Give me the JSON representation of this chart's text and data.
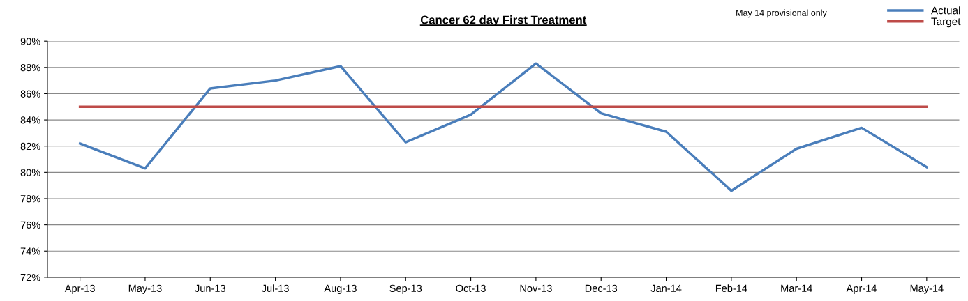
{
  "chart_data": {
    "type": "line",
    "title": "Cancer 62 day First Treatment",
    "categories": [
      "Apr-13",
      "May-13",
      "Jun-13",
      "Jul-13",
      "Aug-13",
      "Sep-13",
      "Oct-13",
      "Nov-13",
      "Dec-13",
      "Jan-14",
      "Feb-14",
      "Mar-14",
      "Apr-14",
      "May-14"
    ],
    "series": [
      {
        "name": "Actual",
        "color": "#4a7ebb",
        "values": [
          82.2,
          80.3,
          86.4,
          87.0,
          88.1,
          82.3,
          84.4,
          88.3,
          84.5,
          83.1,
          78.6,
          81.8,
          83.4,
          80.4
        ]
      },
      {
        "name": "Target",
        "color": "#be4b48",
        "values": [
          85,
          85,
          85,
          85,
          85,
          85,
          85,
          85,
          85,
          85,
          85,
          85,
          85,
          85
        ]
      }
    ],
    "ylim": [
      72,
      90
    ],
    "yticks": [
      {
        "value": 72,
        "label": "72%"
      },
      {
        "value": 74,
        "label": "74%"
      },
      {
        "value": 76,
        "label": "76%"
      },
      {
        "value": 78,
        "label": "78%"
      },
      {
        "value": 80,
        "label": "80%"
      },
      {
        "value": 82,
        "label": "82%"
      },
      {
        "value": 84,
        "label": "84%"
      },
      {
        "value": 86,
        "label": "86%"
      },
      {
        "value": 88,
        "label": "88%"
      },
      {
        "value": 90,
        "label": "90%"
      }
    ],
    "grid": "y",
    "legend": "top right",
    "marker": "none",
    "line_style": "solid",
    "annotations": [
      "May 14 provisional only"
    ]
  }
}
